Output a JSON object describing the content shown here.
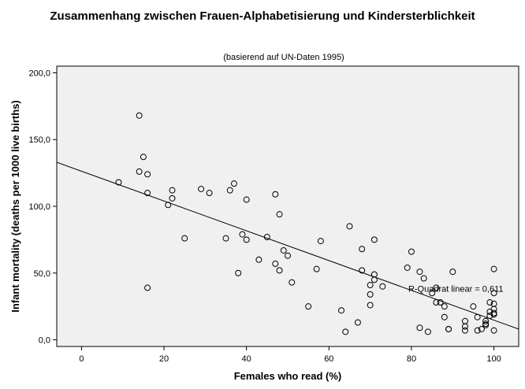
{
  "chart_data": {
    "type": "scatter",
    "title": "Zusammenhang zwischen Frauen-Alphabetisierung und Kindersterblichkeit",
    "subtitle": "(basierend auf UN-Daten 1995)",
    "xlabel": "Females who read (%)",
    "ylabel": "Infant mortality (deaths per 1000 live births)",
    "xlim": [
      -6,
      106
    ],
    "ylim": [
      -5,
      205
    ],
    "x_ticks": [
      0,
      20,
      40,
      60,
      80,
      100
    ],
    "x_tick_labels": [
      "0",
      "20",
      "40",
      "60",
      "80",
      "100"
    ],
    "y_ticks": [
      0,
      50,
      100,
      150,
      200
    ],
    "y_tick_labels": [
      "0,0",
      "50,0",
      "100,0",
      "150,0",
      "200,0"
    ],
    "grid": false,
    "fit_line": {
      "x": [
        -6,
        106
      ],
      "y": [
        133,
        8
      ]
    },
    "annotation": {
      "text": "R-Quadrat linear = 0,611",
      "x": 80,
      "y": 36
    },
    "points": [
      {
        "x": 9,
        "y": 118
      },
      {
        "x": 14,
        "y": 168
      },
      {
        "x": 14,
        "y": 126
      },
      {
        "x": 15,
        "y": 137
      },
      {
        "x": 16,
        "y": 124
      },
      {
        "x": 16,
        "y": 110
      },
      {
        "x": 16,
        "y": 39
      },
      {
        "x": 21,
        "y": 101
      },
      {
        "x": 22,
        "y": 106
      },
      {
        "x": 22,
        "y": 112
      },
      {
        "x": 25,
        "y": 76
      },
      {
        "x": 29,
        "y": 113
      },
      {
        "x": 31,
        "y": 110
      },
      {
        "x": 35,
        "y": 76
      },
      {
        "x": 36,
        "y": 112
      },
      {
        "x": 37,
        "y": 117
      },
      {
        "x": 38,
        "y": 50
      },
      {
        "x": 39,
        "y": 79
      },
      {
        "x": 40,
        "y": 105
      },
      {
        "x": 40,
        "y": 75
      },
      {
        "x": 43,
        "y": 60
      },
      {
        "x": 45,
        "y": 77
      },
      {
        "x": 47,
        "y": 109
      },
      {
        "x": 47,
        "y": 57
      },
      {
        "x": 48,
        "y": 94
      },
      {
        "x": 48,
        "y": 52
      },
      {
        "x": 49,
        "y": 67
      },
      {
        "x": 50,
        "y": 63
      },
      {
        "x": 51,
        "y": 43
      },
      {
        "x": 55,
        "y": 25
      },
      {
        "x": 57,
        "y": 53
      },
      {
        "x": 58,
        "y": 74
      },
      {
        "x": 63,
        "y": 22
      },
      {
        "x": 64,
        "y": 6
      },
      {
        "x": 65,
        "y": 85
      },
      {
        "x": 67,
        "y": 13
      },
      {
        "x": 68,
        "y": 68
      },
      {
        "x": 68,
        "y": 52
      },
      {
        "x": 70,
        "y": 41
      },
      {
        "x": 70,
        "y": 34
      },
      {
        "x": 70,
        "y": 26
      },
      {
        "x": 71,
        "y": 75
      },
      {
        "x": 71,
        "y": 49
      },
      {
        "x": 71,
        "y": 45
      },
      {
        "x": 73,
        "y": 40
      },
      {
        "x": 79,
        "y": 54
      },
      {
        "x": 80,
        "y": 66
      },
      {
        "x": 82,
        "y": 51
      },
      {
        "x": 82,
        "y": 9
      },
      {
        "x": 83,
        "y": 46
      },
      {
        "x": 84,
        "y": 6
      },
      {
        "x": 85,
        "y": 35
      },
      {
        "x": 86,
        "y": 39
      },
      {
        "x": 86,
        "y": 28
      },
      {
        "x": 87,
        "y": 28
      },
      {
        "x": 88,
        "y": 25
      },
      {
        "x": 88,
        "y": 17
      },
      {
        "x": 89,
        "y": 8
      },
      {
        "x": 89,
        "y": 8
      },
      {
        "x": 90,
        "y": 51
      },
      {
        "x": 93,
        "y": 14
      },
      {
        "x": 93,
        "y": 10
      },
      {
        "x": 93,
        "y": 7
      },
      {
        "x": 95,
        "y": 25
      },
      {
        "x": 96,
        "y": 17
      },
      {
        "x": 96,
        "y": 7
      },
      {
        "x": 97,
        "y": 8
      },
      {
        "x": 98,
        "y": 14
      },
      {
        "x": 98,
        "y": 11
      },
      {
        "x": 98,
        "y": 12
      },
      {
        "x": 99,
        "y": 28
      },
      {
        "x": 99,
        "y": 21
      },
      {
        "x": 99,
        "y": 18
      },
      {
        "x": 100,
        "y": 53
      },
      {
        "x": 100,
        "y": 35
      },
      {
        "x": 100,
        "y": 27
      },
      {
        "x": 100,
        "y": 23
      },
      {
        "x": 100,
        "y": 20
      },
      {
        "x": 100,
        "y": 19
      },
      {
        "x": 100,
        "y": 7
      }
    ]
  }
}
